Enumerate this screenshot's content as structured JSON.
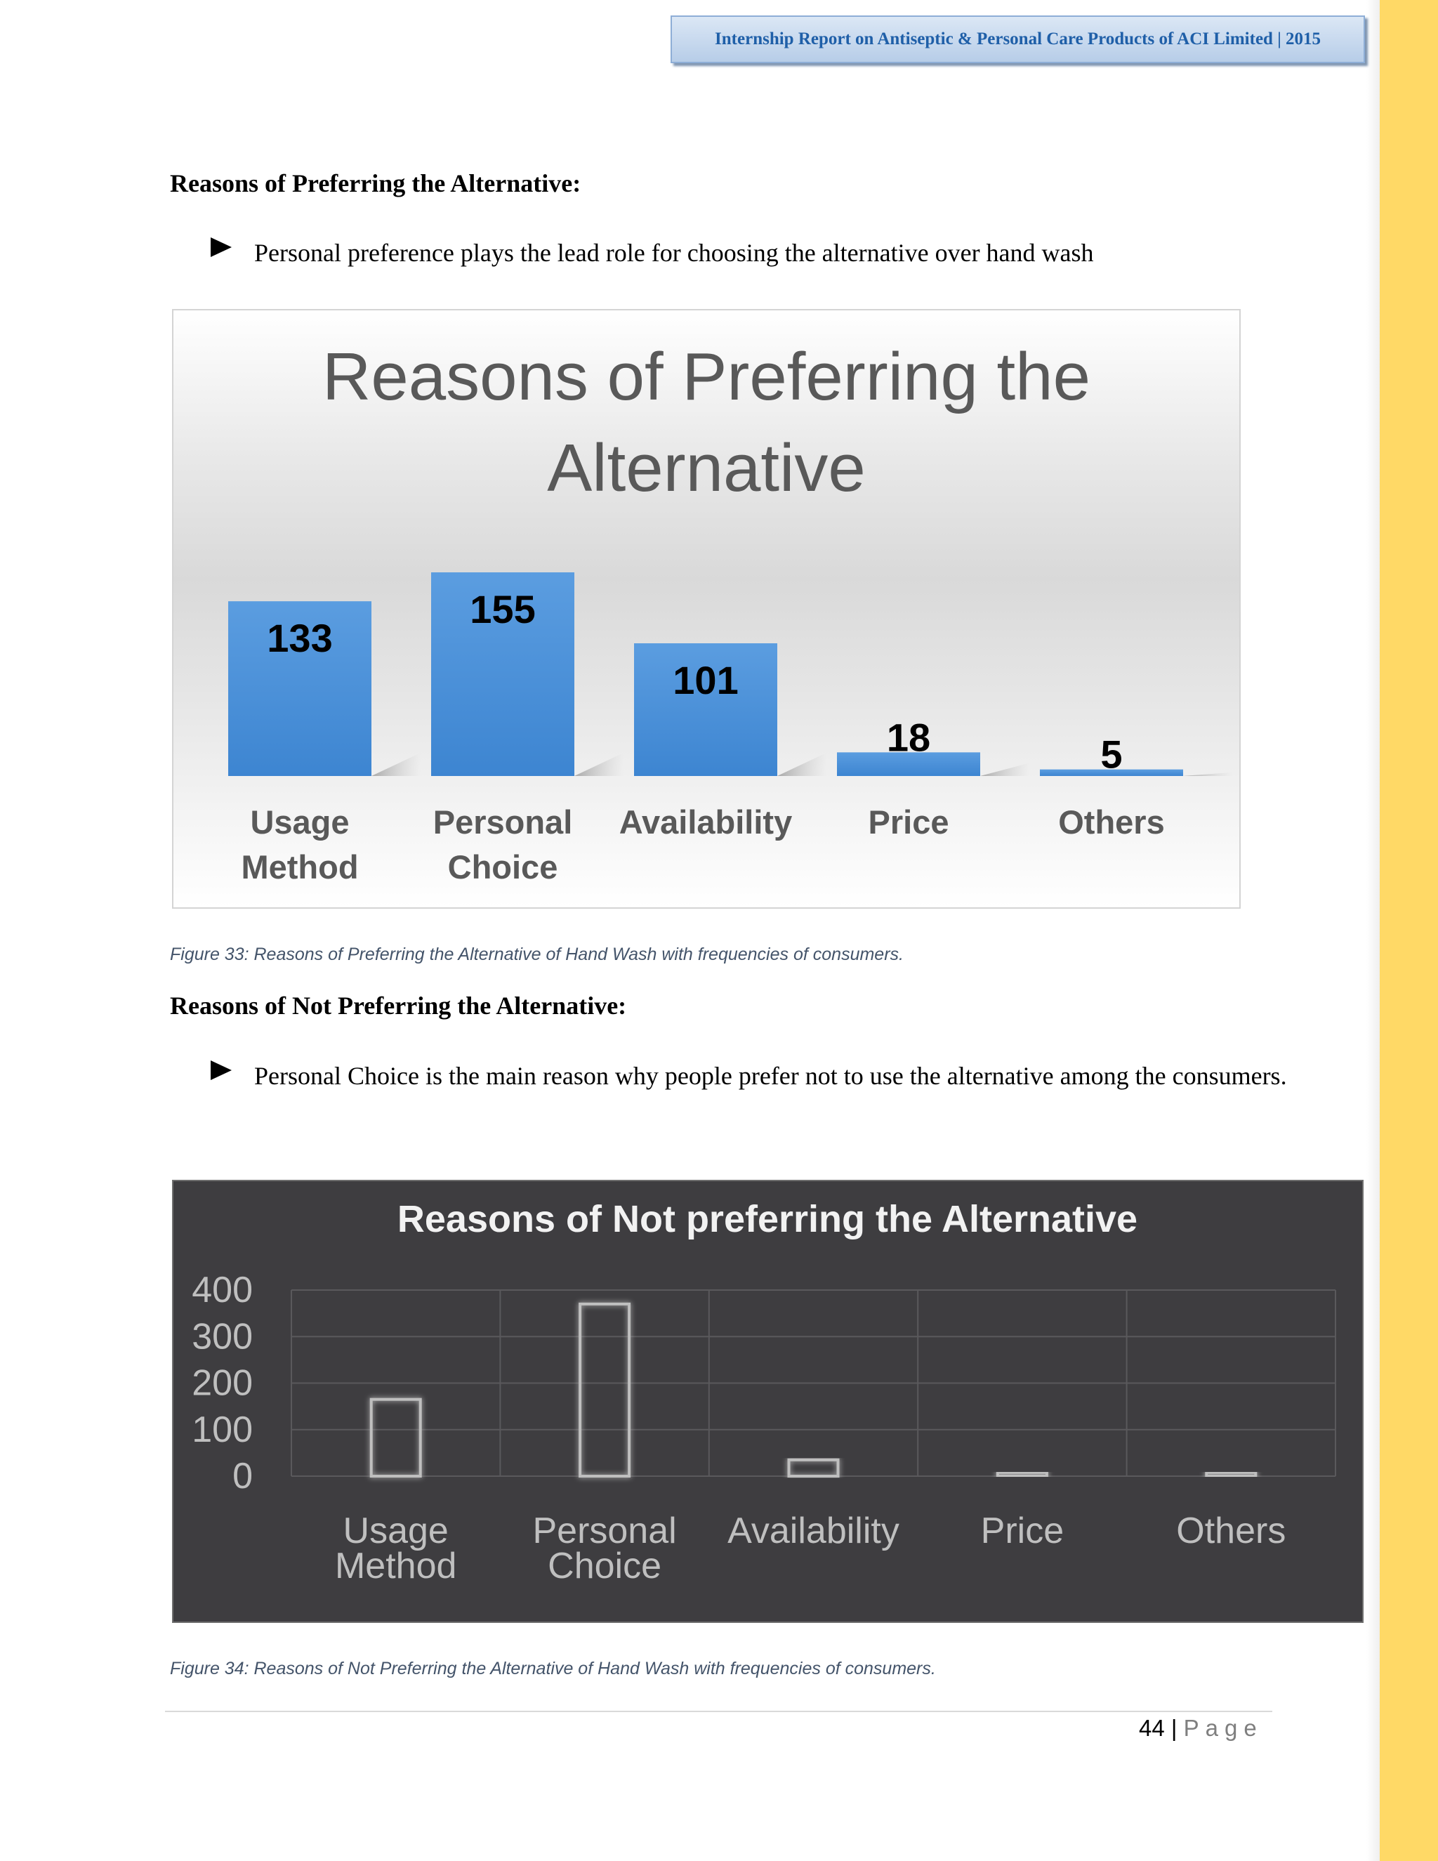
{
  "header": {
    "text": "Internship Report on Antiseptic & Personal Care Products of ACI Limited | 2015"
  },
  "section1": {
    "heading": "Reasons of Preferring the Alternative:",
    "bullet": "Personal preference plays the lead role for choosing the alternative over hand wash"
  },
  "chart_data": [
    {
      "type": "bar",
      "title": "Reasons of Preferring the Alternative",
      "categories": [
        [
          "Usage",
          "Method"
        ],
        [
          "Personal",
          "Choice"
        ],
        [
          "Availability"
        ],
        [
          "Price"
        ],
        [
          "Others"
        ]
      ],
      "values": [
        133,
        155,
        101,
        18,
        5
      ],
      "data_labels": true,
      "grid": false,
      "colors": {
        "bar": "#3d85d1",
        "bar_light": "#5b9de0",
        "title": "#595959",
        "labels": "#595959"
      }
    },
    {
      "type": "bar",
      "title": "Reasons of Not preferring the Alternative",
      "categories": [
        [
          "Usage",
          "Method"
        ],
        [
          "Personal",
          "Choice"
        ],
        [
          "Availability"
        ],
        [
          "Price"
        ],
        [
          "Others"
        ]
      ],
      "values": [
        165,
        370,
        35,
        8,
        8
      ],
      "ylim": [
        0,
        400
      ],
      "yticks": [
        0,
        100,
        200,
        300,
        400
      ],
      "grid": true,
      "colors": {
        "background": "#3e3d40",
        "bar_outline": "#bfbfbf",
        "title": "#f2f2f2",
        "labels": "#bfbfbf"
      }
    }
  ],
  "caption1": "Figure 33: Reasons of Preferring the Alternative of Hand Wash with frequencies of consumers.",
  "section2": {
    "heading": "Reasons of Not Preferring the Alternative:",
    "bullet": "Personal Choice is the main reason why people prefer not to use the alternative among the consumers."
  },
  "caption2": "Figure 34: Reasons of Not Preferring the Alternative of Hand Wash with frequencies of consumers.",
  "footer": {
    "page_number": "44",
    "separator": "|",
    "page_word": "Page"
  }
}
